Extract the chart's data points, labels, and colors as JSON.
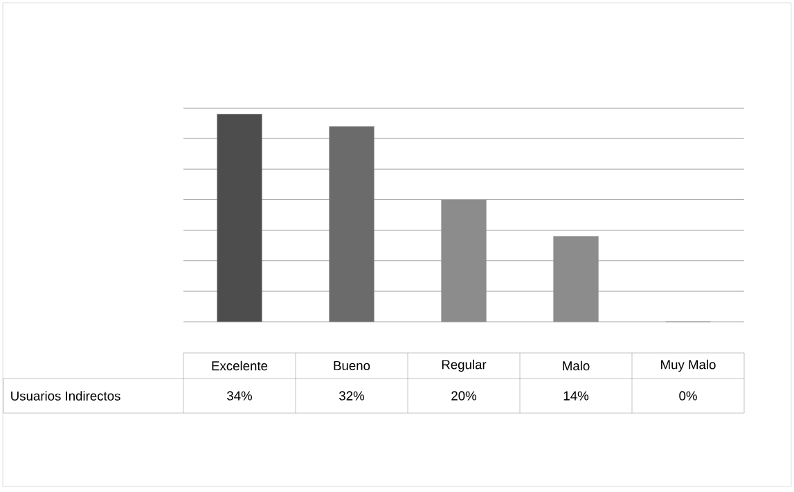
{
  "chart_data": {
    "type": "bar",
    "categories": [
      "Excelente",
      "Bueno",
      "Regular",
      "Malo",
      "Muy Malo"
    ],
    "series": [
      {
        "name": "Usuarios Indirectos",
        "values": [
          34,
          32,
          20,
          14,
          0
        ],
        "value_labels": [
          "34%",
          "32%",
          "20%",
          "14%",
          "0%"
        ],
        "colors": [
          "#4d4d4d",
          "#6b6b6b",
          "#8c8c8c",
          "#8c8c8c",
          "#a0a0a0"
        ]
      }
    ],
    "grid": "y"
  }
}
